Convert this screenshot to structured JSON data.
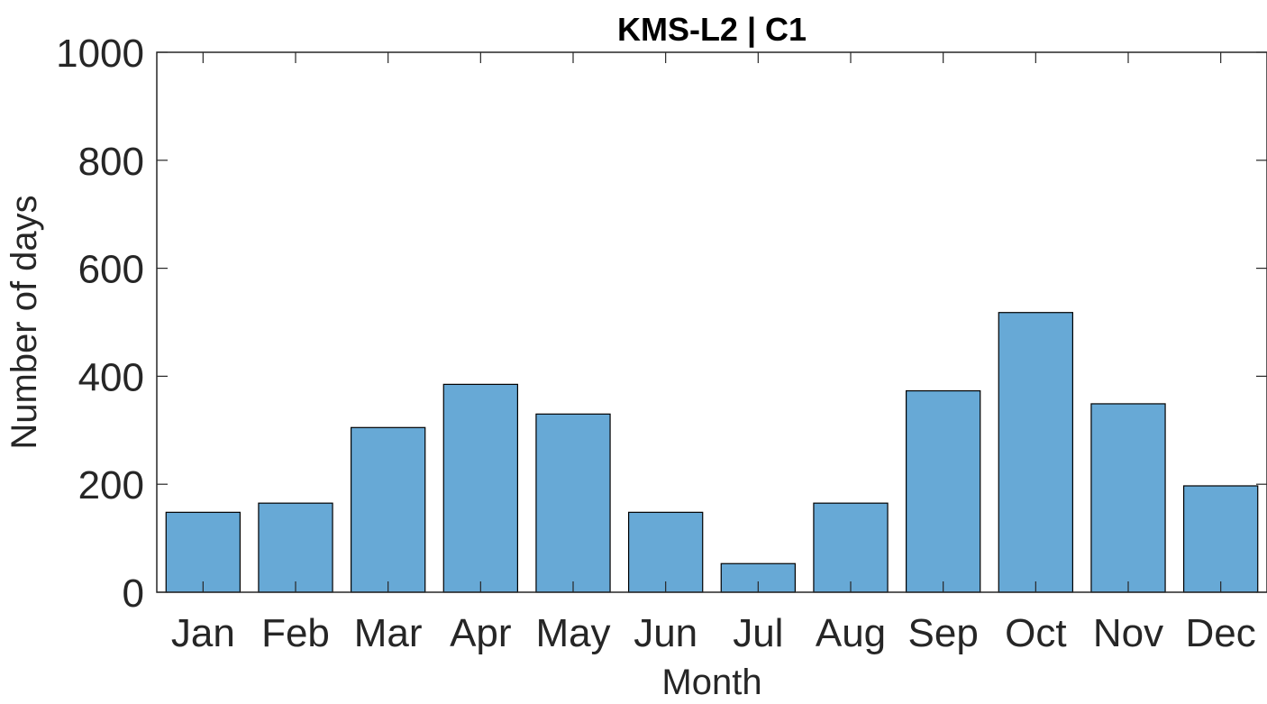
{
  "chart_data": {
    "type": "bar",
    "title": "KMS-L2 | C1",
    "xlabel": "Month",
    "ylabel": "Number of days",
    "categories": [
      "Jan",
      "Feb",
      "Mar",
      "Apr",
      "May",
      "Jun",
      "Jul",
      "Aug",
      "Sep",
      "Oct",
      "Nov",
      "Dec"
    ],
    "values": [
      148,
      165,
      305,
      385,
      330,
      148,
      53,
      165,
      373,
      518,
      349,
      197
    ],
    "ylim": [
      0,
      1000
    ],
    "yticks": [
      0,
      200,
      400,
      600,
      800,
      1000
    ],
    "grid": false,
    "legend": "none",
    "colors": {
      "bar_fill": "#67a9d6",
      "bar_edge": "#000000",
      "axis": "#262626"
    }
  }
}
